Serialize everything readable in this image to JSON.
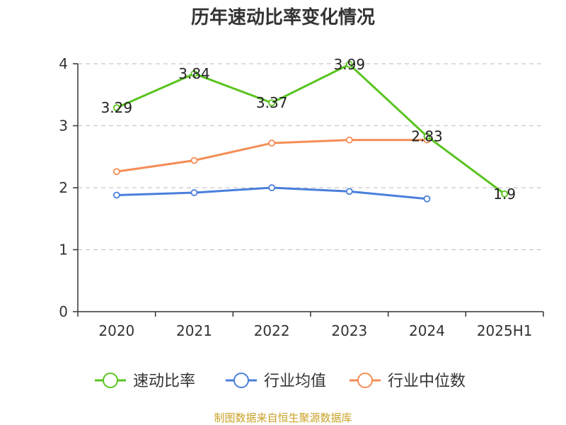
{
  "chart_data": {
    "type": "line",
    "title": "历年速动比率变化情况",
    "categories": [
      "2020",
      "2021",
      "2022",
      "2023",
      "2024",
      "2025H1"
    ],
    "ylim": [
      0,
      4
    ],
    "yticks": [
      "0",
      "1",
      "2",
      "3",
      "4"
    ],
    "grid": true,
    "legend_position": "bottom",
    "series": [
      {
        "name": "速动比率",
        "color": "#5ac41f",
        "values": [
          3.29,
          3.84,
          3.37,
          3.99,
          2.83,
          1.9
        ],
        "labels": [
          "3.29",
          "3.84",
          "3.37",
          "3.99",
          "2.83",
          "1.9"
        ]
      },
      {
        "name": "行业均值",
        "color": "#4a7fdb",
        "values": [
          1.88,
          1.92,
          2.0,
          1.94,
          1.82,
          null
        ]
      },
      {
        "name": "行业中位数",
        "color": "#f58d56",
        "values": [
          2.26,
          2.44,
          2.72,
          2.77,
          2.77,
          null
        ]
      }
    ]
  },
  "footer": {
    "source": "制图数据来自恒生聚源数据库"
  }
}
